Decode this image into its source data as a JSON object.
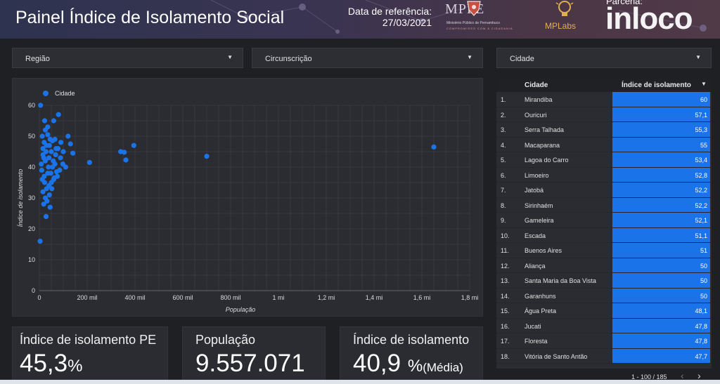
{
  "header": {
    "title": "Painel Índice de Isolamento Social",
    "ref_label": "Data de referência:",
    "ref_date": "27/03/2021",
    "logo_mppe": "MPPE",
    "logo_mppe_sub": "Ministério Público de Pernambuco",
    "logo_mppe_slogan": "COMPROMISSO COM A CIDADANIA",
    "logo_mplabs": "MPLabs",
    "parceria_label": "Parceria:",
    "logo_inloco": "inloco"
  },
  "filters": {
    "regiao": "Região",
    "circunscricao": "Circunscrição",
    "cidade": "Cidade"
  },
  "chart_data": {
    "type": "scatter",
    "legend": "Cidade",
    "xlabel": "População",
    "ylabel": "Índice de isolamento",
    "xlim": [
      0,
      1800000
    ],
    "ylim": [
      0,
      60
    ],
    "x_ticks": [
      0,
      200000,
      400000,
      600000,
      800000,
      1000000,
      1200000,
      1400000,
      1600000,
      1800000
    ],
    "x_tick_labels": [
      "0",
      "200 mil",
      "400 mil",
      "600 mil",
      "800 mil",
      "1 mi",
      "1,2 mi",
      "1,4 mi",
      "1,6 mi",
      "1,8 mi"
    ],
    "y_ticks": [
      0,
      10,
      20,
      30,
      40,
      50,
      60
    ],
    "grid": true,
    "legend_position": "top-left",
    "color": "#1a73e8",
    "points": [
      [
        1650000,
        46.5
      ],
      [
        700000,
        43.5
      ],
      [
        395000,
        47
      ],
      [
        340000,
        45
      ],
      [
        355000,
        44.8
      ],
      [
        362000,
        42.3
      ],
      [
        210000,
        41.5
      ],
      [
        5000,
        60
      ],
      [
        3000,
        16
      ],
      [
        28000,
        24
      ],
      [
        18000,
        28
      ],
      [
        45000,
        27
      ],
      [
        25000,
        30
      ],
      [
        15000,
        32
      ],
      [
        30000,
        33
      ],
      [
        40000,
        34
      ],
      [
        50000,
        35
      ],
      [
        60000,
        36
      ],
      [
        20000,
        37
      ],
      [
        35000,
        38
      ],
      [
        10000,
        39
      ],
      [
        55000,
        40
      ],
      [
        65000,
        41
      ],
      [
        25000,
        42
      ],
      [
        40000,
        43
      ],
      [
        15000,
        44
      ],
      [
        50000,
        45
      ],
      [
        70000,
        46
      ],
      [
        30000,
        47
      ],
      [
        20000,
        48
      ],
      [
        45000,
        49
      ],
      [
        12000,
        50
      ],
      [
        25000,
        52
      ],
      [
        35000,
        53
      ],
      [
        22000,
        55
      ],
      [
        8000,
        41
      ],
      [
        18000,
        43
      ],
      [
        28000,
        45
      ],
      [
        38000,
        40
      ],
      [
        48000,
        38
      ],
      [
        58000,
        42
      ],
      [
        68000,
        44
      ],
      [
        78000,
        46
      ],
      [
        88000,
        43
      ],
      [
        98000,
        41
      ],
      [
        110000,
        40
      ],
      [
        90000,
        48
      ],
      [
        120000,
        50
      ],
      [
        140000,
        44.5
      ],
      [
        130000,
        47.5
      ],
      [
        100000,
        45
      ],
      [
        85000,
        39
      ],
      [
        75000,
        37
      ],
      [
        42000,
        31
      ],
      [
        32000,
        29
      ],
      [
        22000,
        35
      ],
      [
        12000,
        36
      ],
      [
        52000,
        33
      ],
      [
        62000,
        36.5
      ],
      [
        72000,
        38.5
      ],
      [
        80000,
        57
      ],
      [
        60000,
        55
      ],
      [
        15000,
        46
      ],
      [
        42000,
        47
      ],
      [
        55000,
        48.5
      ],
      [
        35000,
        50.5
      ],
      [
        65000,
        49
      ]
    ]
  },
  "kpis": [
    {
      "label": "Índice de isolamento PE",
      "value": "45,3",
      "unit": "%",
      "suffix": ""
    },
    {
      "label": "População",
      "value": "9.557.071",
      "unit": "",
      "suffix": ""
    },
    {
      "label": "Índice de isolamento",
      "value": "40,9",
      "unit": "%",
      "suffix": "(Média)"
    }
  ],
  "table": {
    "col_city": "Cidade",
    "col_index": "Índice de isolamento",
    "sort_icon": "caret-down-icon",
    "bar_color": "#1a73e8",
    "rows": [
      {
        "n": "1.",
        "city": "Mirandiba",
        "value": "60"
      },
      {
        "n": "2.",
        "city": "Ouricuri",
        "value": "57,1"
      },
      {
        "n": "3.",
        "city": "Serra Talhada",
        "value": "55,3"
      },
      {
        "n": "4.",
        "city": "Macaparana",
        "value": "55"
      },
      {
        "n": "5.",
        "city": "Lagoa do Carro",
        "value": "53,4"
      },
      {
        "n": "6.",
        "city": "Limoeiro",
        "value": "52,8"
      },
      {
        "n": "7.",
        "city": "Jatobá",
        "value": "52,2"
      },
      {
        "n": "8.",
        "city": "Sirinhaém",
        "value": "52,2"
      },
      {
        "n": "9.",
        "city": "Gameleira",
        "value": "52,1"
      },
      {
        "n": "10.",
        "city": "Escada",
        "value": "51,1"
      },
      {
        "n": "11.",
        "city": "Buenos Aires",
        "value": "51"
      },
      {
        "n": "12.",
        "city": "Aliança",
        "value": "50"
      },
      {
        "n": "13.",
        "city": "Santa Maria da Boa Vista",
        "value": "50"
      },
      {
        "n": "14.",
        "city": "Garanhuns",
        "value": "50"
      },
      {
        "n": "15.",
        "city": "Água Preta",
        "value": "48,1"
      },
      {
        "n": "16.",
        "city": "Jucati",
        "value": "47,8"
      },
      {
        "n": "17.",
        "city": "Floresta",
        "value": "47,8"
      },
      {
        "n": "18.",
        "city": "Vitória de Santo Antão",
        "value": "47,7"
      }
    ],
    "pagination": "1 - 100 / 185"
  }
}
